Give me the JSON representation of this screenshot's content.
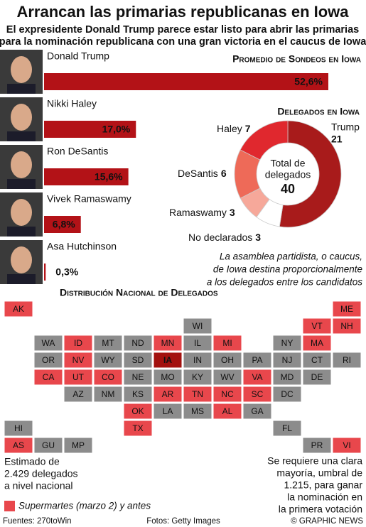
{
  "header": {
    "title": "Arrancan las primarias republicanas en Iowa",
    "subtitle": [
      "El expresidente Donald Trump parece estar listo para abrir las primarias",
      "para la nominación republicana con una gran victoria en el caucus de Iowa"
    ]
  },
  "chart_data": [
    {
      "type": "bar",
      "title": "Promedio de Sondeos en Iowa",
      "categories": [
        "Donald Trump",
        "Nikki Haley",
        "Ron DeSantis",
        "Vivek Ramaswamy",
        "Asa Hutchinson"
      ],
      "values": [
        52.6,
        17.0,
        15.6,
        6.8,
        0.3
      ],
      "value_labels": [
        "52,6%",
        "17,0%",
        "15,6%",
        "6,8%",
        "0,3%"
      ],
      "color": "#b31217"
    },
    {
      "type": "pie",
      "title": "Delegados en Iowa",
      "categories": [
        "Trump",
        "No declarados",
        "Ramaswamy",
        "DeSantis",
        "Haley"
      ],
      "values": [
        21,
        3,
        3,
        6,
        7
      ],
      "colors": [
        "#a81b1b",
        "#ffffff",
        "#f6a89a",
        "#ee6a58",
        "#e0282e"
      ],
      "center_label": [
        "Total de",
        "delegados"
      ],
      "total": 40
    }
  ],
  "caucus_note": [
    "La asamblea partidista, o caucus,",
    "de Iowa destina proporcionalmente",
    "a los delegados entre los candidatos"
  ],
  "map": {
    "title": "Distribución Nacional de Delegados",
    "states": [
      {
        "label": "AK",
        "color": "#e8474c"
      },
      {
        "label": "ME",
        "color": "#e8474c"
      },
      {
        "label": "WI",
        "color": "#8c8c8c"
      },
      {
        "label": "VT",
        "color": "#e8474c"
      },
      {
        "label": "NH",
        "color": "#e8474c"
      },
      {
        "label": "WA",
        "color": "#8c8c8c"
      },
      {
        "label": "ID",
        "color": "#e8474c"
      },
      {
        "label": "MT",
        "color": "#8c8c8c"
      },
      {
        "label": "ND",
        "color": "#8c8c8c"
      },
      {
        "label": "MN",
        "color": "#e8474c"
      },
      {
        "label": "IL",
        "color": "#8c8c8c"
      },
      {
        "label": "MI",
        "color": "#e8474c"
      },
      {
        "label": "NY",
        "color": "#8c8c8c"
      },
      {
        "label": "MA",
        "color": "#e8474c"
      },
      {
        "label": "OR",
        "color": "#8c8c8c"
      },
      {
        "label": "NV",
        "color": "#e8474c"
      },
      {
        "label": "WY",
        "color": "#8c8c8c"
      },
      {
        "label": "SD",
        "color": "#8c8c8c"
      },
      {
        "label": "IA",
        "color": "#a3110f"
      },
      {
        "label": "IN",
        "color": "#8c8c8c"
      },
      {
        "label": "OH",
        "color": "#8c8c8c"
      },
      {
        "label": "PA",
        "color": "#8c8c8c"
      },
      {
        "label": "NJ",
        "color": "#8c8c8c"
      },
      {
        "label": "CT",
        "color": "#8c8c8c"
      },
      {
        "label": "RI",
        "color": "#8c8c8c"
      },
      {
        "label": "CA",
        "color": "#e8474c"
      },
      {
        "label": "UT",
        "color": "#e8474c"
      },
      {
        "label": "CO",
        "color": "#e8474c"
      },
      {
        "label": "NE",
        "color": "#8c8c8c"
      },
      {
        "label": "MO",
        "color": "#8c8c8c"
      },
      {
        "label": "KY",
        "color": "#8c8c8c"
      },
      {
        "label": "WV",
        "color": "#8c8c8c"
      },
      {
        "label": "VA",
        "color": "#e8474c"
      },
      {
        "label": "MD",
        "color": "#8c8c8c"
      },
      {
        "label": "DE",
        "color": "#8c8c8c"
      },
      {
        "label": "AZ",
        "color": "#8c8c8c"
      },
      {
        "label": "NM",
        "color": "#8c8c8c"
      },
      {
        "label": "KS",
        "color": "#8c8c8c"
      },
      {
        "label": "AR",
        "color": "#e8474c"
      },
      {
        "label": "TN",
        "color": "#e8474c"
      },
      {
        "label": "NC",
        "color": "#e8474c"
      },
      {
        "label": "SC",
        "color": "#e8474c"
      },
      {
        "label": "DC",
        "color": "#8c8c8c"
      },
      {
        "label": "OK",
        "color": "#e8474c"
      },
      {
        "label": "LA",
        "color": "#8c8c8c"
      },
      {
        "label": "MS",
        "color": "#8c8c8c"
      },
      {
        "label": "AL",
        "color": "#e8474c"
      },
      {
        "label": "GA",
        "color": "#8c8c8c"
      },
      {
        "label": "HI",
        "color": "#8c8c8c"
      },
      {
        "label": "TX",
        "color": "#e8474c"
      },
      {
        "label": "FL",
        "color": "#8c8c8c"
      },
      {
        "label": "AS",
        "color": "#e8474c"
      },
      {
        "label": "GU",
        "color": "#8c8c8c"
      },
      {
        "label": "MP",
        "color": "#8c8c8c"
      },
      {
        "label": "PR",
        "color": "#8c8c8c"
      },
      {
        "label": "VI",
        "color": "#e8474c"
      }
    ]
  },
  "note_left": [
    "Estimado de",
    "2.429 delegados",
    "a nivel nacional"
  ],
  "note_right": [
    "Se requiere una clara",
    "mayoría, umbral de",
    "1.215, para ganar",
    "la  nominación en",
    "la primera votación"
  ],
  "legend": {
    "label": "Supermartes (marzo 2) y antes",
    "color": "#e8474c"
  },
  "footer": {
    "source": "Fuentes: 270toWin",
    "photos": "Fotos: Getty Images",
    "credit": "© GRAPHIC NEWS"
  }
}
